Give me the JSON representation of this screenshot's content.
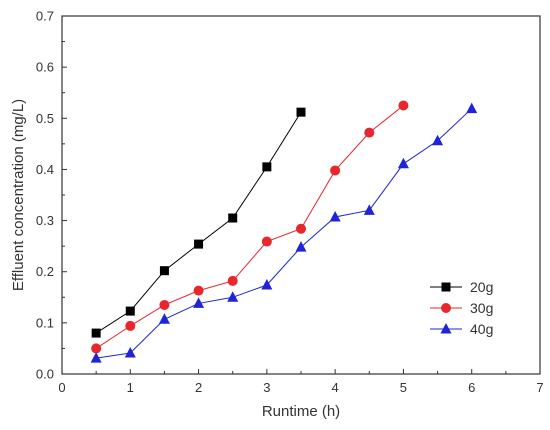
{
  "chart_data": {
    "type": "line",
    "title": "",
    "xlabel": "Runtime (h)",
    "ylabel": "Effluent concentration (mg/L)",
    "xlim": [
      0,
      7
    ],
    "ylim": [
      0,
      0.7
    ],
    "xticks": [
      "0",
      "1",
      "2",
      "3",
      "4",
      "5",
      "6",
      "7"
    ],
    "yticks": [
      "0.0",
      "0.1",
      "0.2",
      "0.3",
      "0.4",
      "0.5",
      "0.6",
      "0.7"
    ],
    "grid": false,
    "legend_position": "lower-right",
    "series": [
      {
        "name": "20g",
        "marker": "square",
        "color": "#000000",
        "x": [
          0.5,
          1.0,
          1.5,
          2.0,
          2.5,
          3.0,
          3.5
        ],
        "y": [
          0.08,
          0.123,
          0.202,
          0.254,
          0.305,
          0.405,
          0.512
        ]
      },
      {
        "name": "30g",
        "marker": "circle",
        "color": "#e8262b",
        "x": [
          0.5,
          1.0,
          1.5,
          2.0,
          2.5,
          3.0,
          3.5,
          4.0,
          4.5,
          5.0
        ],
        "y": [
          0.05,
          0.094,
          0.135,
          0.163,
          0.182,
          0.259,
          0.284,
          0.398,
          0.472,
          0.525
        ]
      },
      {
        "name": "40g",
        "marker": "triangle",
        "color": "#1f24d6",
        "x": [
          0.5,
          1.0,
          1.5,
          2.0,
          2.5,
          3.0,
          3.5,
          4.0,
          4.5,
          5.0,
          5.5,
          6.0
        ],
        "y": [
          0.031,
          0.041,
          0.107,
          0.138,
          0.15,
          0.174,
          0.248,
          0.307,
          0.32,
          0.411,
          0.456,
          0.519
        ]
      }
    ]
  }
}
